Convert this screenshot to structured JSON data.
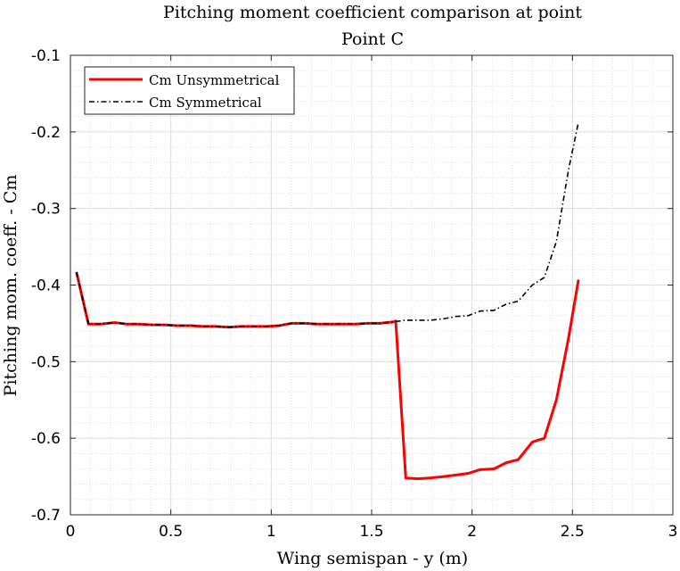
{
  "chart_data": {
    "type": "line",
    "title": "Pitching moment coefficient comparison at point",
    "subtitle": "Point C",
    "xlabel": "Wing semispan - y (m)",
    "ylabel": "Pitching mom. coeff. - Cm",
    "xlim": [
      0,
      3
    ],
    "ylim": [
      -0.7,
      -0.1
    ],
    "xticks": [
      0,
      0.5,
      1,
      1.5,
      2,
      2.5,
      3
    ],
    "xtick_labels": [
      "0",
      "0.5",
      "1",
      "1.5",
      "2",
      "2.5",
      "3"
    ],
    "yticks": [
      -0.7,
      -0.6,
      -0.5,
      -0.4,
      -0.3,
      -0.2,
      -0.1
    ],
    "ytick_labels": [
      "-0.7",
      "-0.6",
      "-0.5",
      "-0.4",
      "-0.3",
      "-0.2",
      "-0.1"
    ],
    "grid": true,
    "minor_grid": true,
    "legend_position": "top-left",
    "series": [
      {
        "name": "Cm Unsymmetrical",
        "color": "#ff0000",
        "style": "solid",
        "x": [
          0.03,
          0.09,
          0.15,
          0.22,
          0.28,
          0.34,
          0.41,
          0.47,
          0.53,
          0.6,
          0.66,
          0.72,
          0.79,
          0.85,
          0.91,
          0.98,
          1.04,
          1.1,
          1.17,
          1.23,
          1.29,
          1.35,
          1.42,
          1.48,
          1.54,
          1.61,
          1.62,
          1.67,
          1.73,
          1.79,
          1.86,
          1.92,
          1.98,
          2.04,
          2.11,
          2.17,
          2.23,
          2.3,
          2.36,
          2.42,
          2.48,
          2.53
        ],
        "y": [
          -0.383,
          -0.451,
          -0.451,
          -0.449,
          -0.451,
          -0.451,
          -0.452,
          -0.452,
          -0.453,
          -0.453,
          -0.454,
          -0.454,
          -0.455,
          -0.454,
          -0.454,
          -0.454,
          -0.453,
          -0.45,
          -0.45,
          -0.451,
          -0.451,
          -0.451,
          -0.451,
          -0.45,
          -0.45,
          -0.448,
          -0.447,
          -0.652,
          -0.653,
          -0.652,
          -0.65,
          -0.648,
          -0.646,
          -0.641,
          -0.64,
          -0.632,
          -0.628,
          -0.605,
          -0.6,
          -0.55,
          -0.47,
          -0.393
        ]
      },
      {
        "name": "Cm Symmetrical",
        "color": "#000000",
        "style": "dashdot",
        "x": [
          0.03,
          0.09,
          0.15,
          0.22,
          0.28,
          0.34,
          0.41,
          0.47,
          0.53,
          0.6,
          0.66,
          0.72,
          0.79,
          0.85,
          0.91,
          0.98,
          1.04,
          1.1,
          1.17,
          1.23,
          1.29,
          1.35,
          1.42,
          1.48,
          1.54,
          1.61,
          1.67,
          1.73,
          1.79,
          1.86,
          1.92,
          1.98,
          2.04,
          2.11,
          2.17,
          2.23,
          2.3,
          2.36,
          2.42,
          2.48,
          2.53
        ],
        "y": [
          -0.383,
          -0.451,
          -0.451,
          -0.449,
          -0.451,
          -0.451,
          -0.452,
          -0.452,
          -0.453,
          -0.453,
          -0.454,
          -0.454,
          -0.455,
          -0.454,
          -0.454,
          -0.454,
          -0.453,
          -0.45,
          -0.45,
          -0.451,
          -0.451,
          -0.451,
          -0.451,
          -0.45,
          -0.45,
          -0.448,
          -0.446,
          -0.446,
          -0.446,
          -0.444,
          -0.441,
          -0.44,
          -0.434,
          -0.433,
          -0.425,
          -0.421,
          -0.4,
          -0.39,
          -0.343,
          -0.25,
          -0.187
        ]
      }
    ]
  }
}
